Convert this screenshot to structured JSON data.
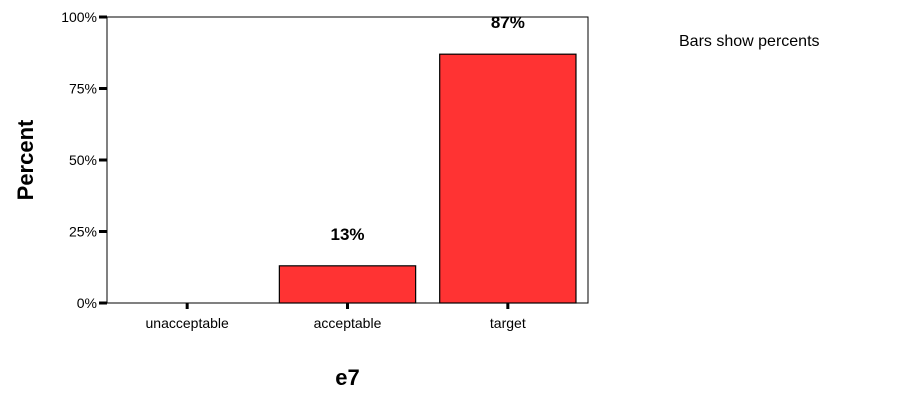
{
  "note": "Bars show percents",
  "chart_data": {
    "type": "bar",
    "title": "",
    "xlabel": "e7",
    "ylabel": "Percent",
    "categories": [
      "unacceptable",
      "acceptable",
      "target"
    ],
    "values": [
      0,
      13,
      87
    ],
    "data_labels": [
      "",
      "13%",
      "87%"
    ],
    "ylim": [
      0,
      100
    ],
    "yticks": [
      0,
      25,
      50,
      75,
      100
    ],
    "ytick_labels": [
      "0%",
      "25%",
      "50%",
      "75%",
      "100%"
    ],
    "grid": false,
    "bar_color": "#ff3333",
    "bar_edge_color": "#000000"
  }
}
